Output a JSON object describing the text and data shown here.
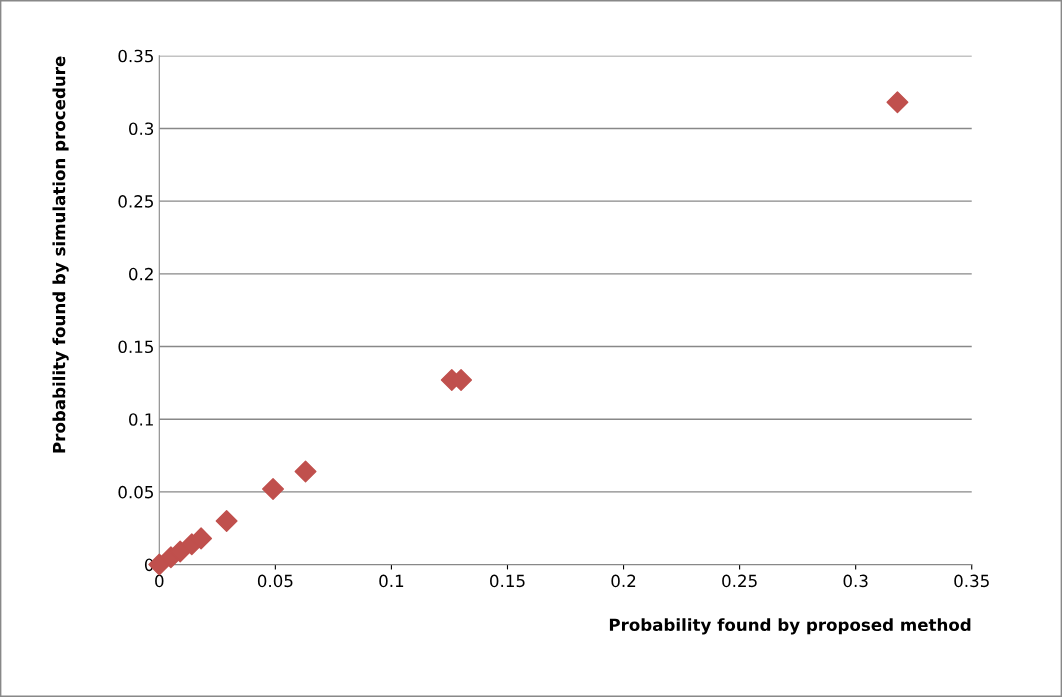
{
  "chart_data": {
    "type": "scatter",
    "xlabel": "Probability found by proposed method",
    "ylabel": "Probability found by simulation procedure",
    "x": [
      0,
      0.005,
      0.009,
      0.014,
      0.018,
      0.029,
      0.049,
      0.063,
      0.126,
      0.13,
      0.318
    ],
    "series": [
      {
        "color": "#c0504d",
        "values": [
          0,
          0.005,
          0.009,
          0.014,
          0.018,
          0.03,
          0.052,
          0.064,
          0.127,
          0.127,
          0.318
        ]
      }
    ],
    "xlim": [
      0,
      0.35
    ],
    "ylim": [
      0,
      0.35
    ],
    "xticks": [
      0,
      0.05,
      0.1,
      0.15,
      0.2,
      0.25,
      0.3,
      0.35
    ],
    "yticks": [
      0,
      0.05,
      0.1,
      0.15,
      0.2,
      0.25,
      0.3,
      0.35
    ],
    "grid": "y",
    "marker": "diamond"
  }
}
